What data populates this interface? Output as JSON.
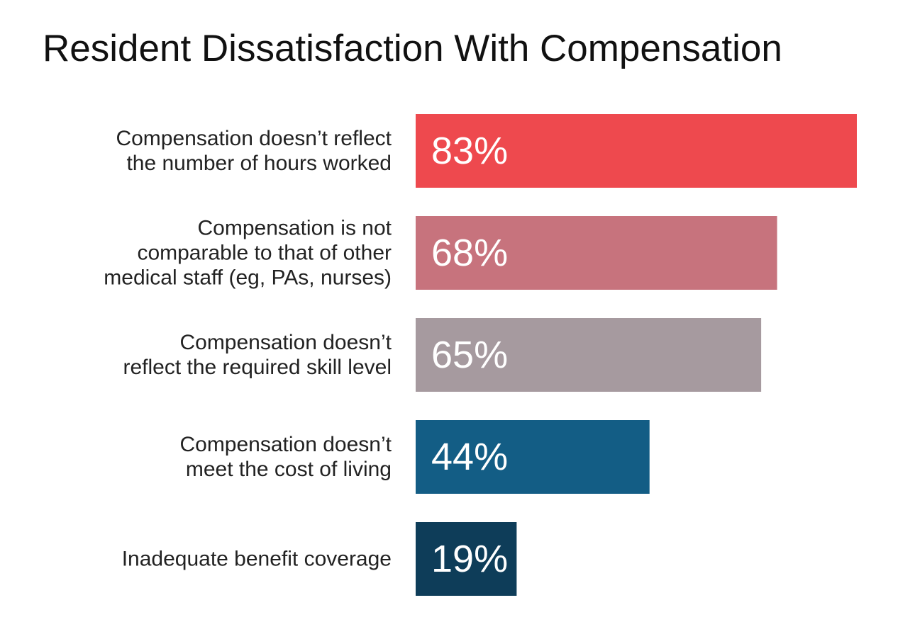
{
  "chart_data": {
    "type": "bar",
    "orientation": "horizontal",
    "title": "Resident Dissatisfaction With Compensation",
    "xlabel": "",
    "ylabel": "",
    "xlim": [
      0,
      83
    ],
    "grid": false,
    "categories": [
      [
        "Compensation doesn’t reflect",
        "the number of hours worked"
      ],
      [
        "Compensation is not",
        "comparable to that of other",
        "medical staff (eg, PAs, nurses)"
      ],
      [
        "Compensation doesn’t",
        "reflect the required skill level"
      ],
      [
        "Compensation doesn’t",
        "meet the cost of living"
      ],
      [
        "Inadequate benefit coverage"
      ]
    ],
    "values": [
      83,
      68,
      65,
      44,
      19
    ],
    "value_labels": [
      "83%",
      "68%",
      "65%",
      "44%",
      "19%"
    ],
    "colors": [
      "#ee494e",
      "#c7737d",
      "#a69a9f",
      "#135d85",
      "#0e3d59"
    ]
  }
}
